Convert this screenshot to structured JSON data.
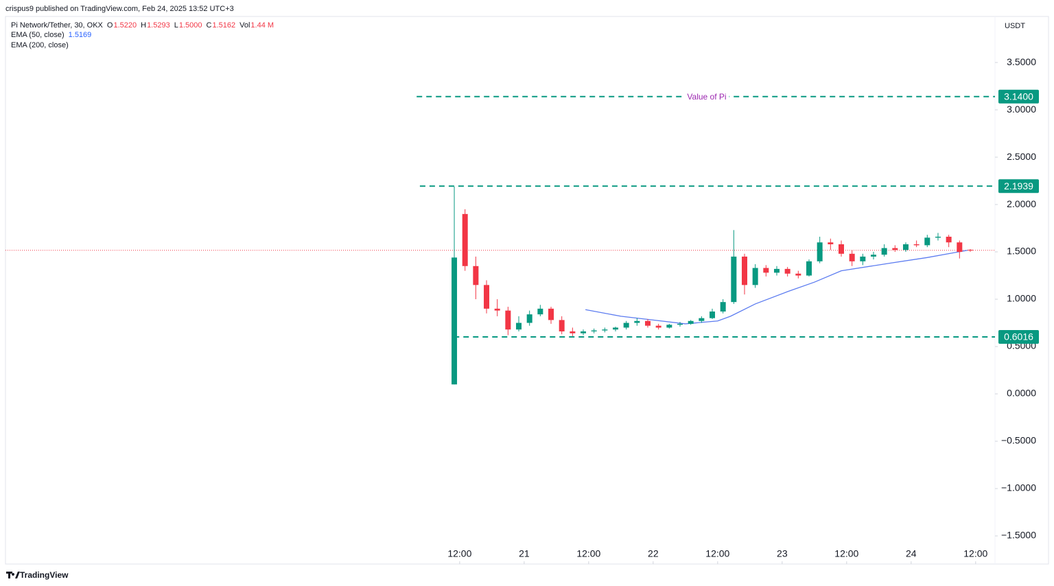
{
  "chart_data": {
    "type": "candlestick",
    "publisher": "crispus9 published on TradingView.com, Feb 24, 2025 13:52 UTC+3",
    "title": "Pi Network/Tether, 30, OKX",
    "legend": [
      {
        "key": "O",
        "value": "1.5220"
      },
      {
        "key": "H",
        "value": "1.5293"
      },
      {
        "key": "L",
        "value": "1.5000"
      },
      {
        "key": "C",
        "value": "1.5162"
      },
      {
        "key": "Vol",
        "value": "1.44 M"
      }
    ],
    "currency": "USDT",
    "watermark": "TradingView",
    "up_color": "#089981",
    "down_color": "#f23645",
    "x": [
      -1,
      1,
      3,
      5,
      7,
      9,
      11,
      13,
      15,
      17,
      19,
      21,
      23,
      25,
      27,
      29,
      31,
      33,
      35,
      37,
      39,
      41,
      43,
      45,
      47,
      49,
      51,
      53,
      55,
      57,
      59,
      61,
      63,
      65,
      67,
      69,
      71,
      73,
      75,
      77,
      79,
      81,
      83,
      85,
      87,
      89,
      91,
      93,
      95
    ],
    "open": [
      0.1,
      1.9,
      1.35,
      1.15,
      0.9,
      0.88,
      0.68,
      0.75,
      0.84,
      0.9,
      0.78,
      0.66,
      0.64,
      0.66,
      0.67,
      0.68,
      0.7,
      0.75,
      0.77,
      0.72,
      0.7,
      0.73,
      0.74,
      0.77,
      0.8,
      0.87,
      0.97,
      1.45,
      1.15,
      1.33,
      1.28,
      1.32,
      1.27,
      1.25,
      1.4,
      1.6,
      1.58,
      1.48,
      1.4,
      1.45,
      1.47,
      1.54,
      1.52,
      1.58,
      1.57,
      1.65,
      1.66,
      1.6,
      1.522
    ],
    "high": [
      2.19,
      1.95,
      1.45,
      1.2,
      1.0,
      0.92,
      0.82,
      0.88,
      0.94,
      0.92,
      0.82,
      0.7,
      0.68,
      0.69,
      0.7,
      0.71,
      0.77,
      0.8,
      0.79,
      0.74,
      0.74,
      0.76,
      0.78,
      0.82,
      0.9,
      1.0,
      1.73,
      1.48,
      1.37,
      1.36,
      1.35,
      1.34,
      1.3,
      1.42,
      1.66,
      1.64,
      1.62,
      1.52,
      1.48,
      1.5,
      1.58,
      1.57,
      1.6,
      1.62,
      1.68,
      1.7,
      1.68,
      1.62,
      1.5293
    ],
    "low": [
      0.1,
      1.3,
      1.0,
      0.85,
      0.82,
      0.62,
      0.66,
      0.72,
      0.82,
      0.74,
      0.63,
      0.61,
      0.62,
      0.64,
      0.65,
      0.66,
      0.68,
      0.72,
      0.7,
      0.68,
      0.69,
      0.71,
      0.73,
      0.75,
      0.79,
      0.85,
      0.95,
      1.05,
      1.12,
      1.24,
      1.25,
      1.24,
      1.22,
      1.24,
      1.38,
      1.52,
      1.45,
      1.35,
      1.36,
      1.42,
      1.45,
      1.5,
      1.5,
      1.55,
      1.55,
      1.62,
      1.55,
      1.43,
      1.5
    ],
    "close": [
      1.44,
      1.35,
      1.15,
      0.9,
      0.88,
      0.68,
      0.75,
      0.84,
      0.9,
      0.78,
      0.66,
      0.64,
      0.66,
      0.67,
      0.68,
      0.7,
      0.75,
      0.77,
      0.72,
      0.7,
      0.73,
      0.74,
      0.77,
      0.8,
      0.87,
      0.97,
      1.45,
      1.15,
      1.33,
      1.28,
      1.32,
      1.27,
      1.25,
      1.4,
      1.6,
      1.58,
      1.48,
      1.4,
      1.45,
      1.47,
      1.54,
      1.52,
      1.58,
      1.57,
      1.65,
      1.66,
      1.6,
      1.5,
      1.5162
    ],
    "ema": {
      "name": "EMA (50, close)",
      "value_label": "1.5169",
      "color": "#5b7bf0",
      "x": [
        23.4,
        30,
        36,
        42,
        48,
        50.4,
        55,
        61,
        66,
        71,
        80,
        87,
        94.5
      ],
      "values": [
        0.89,
        0.82,
        0.78,
        0.74,
        0.77,
        0.82,
        0.95,
        1.08,
        1.18,
        1.3,
        1.38,
        1.44,
        1.5169
      ]
    },
    "ema200": {
      "name": "EMA (200, close)"
    },
    "levels": [
      {
        "value": 3.14,
        "label": "3.1400",
        "start": -8,
        "text": "Value of Pi"
      },
      {
        "value": 2.1939,
        "label": "2.1939",
        "start": -7.4
      },
      {
        "value": 0.6016,
        "label": "0.6016",
        "start": -1.1
      }
    ],
    "level_color": "#089981",
    "xlim": [
      -84.5,
      99.6
    ],
    "xticks": [
      {
        "value": 0,
        "label": "12:00"
      },
      {
        "value": 12,
        "label": "21"
      },
      {
        "value": 24,
        "label": "12:00"
      },
      {
        "value": 36,
        "label": "22"
      },
      {
        "value": 48,
        "label": "12:00"
      },
      {
        "value": 60,
        "label": "23"
      },
      {
        "value": 72,
        "label": "12:00"
      },
      {
        "value": 84,
        "label": "24"
      },
      {
        "value": 96,
        "label": "12:00"
      }
    ],
    "ylim": [
      -1.797,
      3.986
    ],
    "yticks": [
      {
        "value": -1.5,
        "label": "−1.5000"
      },
      {
        "value": -1,
        "label": "−1.0000"
      },
      {
        "value": -0.5,
        "label": "−0.5000"
      },
      {
        "value": 0,
        "label": "0.0000"
      },
      {
        "value": 0.5,
        "label": "0.5000"
      },
      {
        "value": 1,
        "label": "1.0000"
      },
      {
        "value": 1.5,
        "label": "1.5000"
      },
      {
        "value": 2,
        "label": "2.0000"
      },
      {
        "value": 2.5,
        "label": "2.5000"
      },
      {
        "value": 3,
        "label": "3.0000"
      },
      {
        "value": 3.5,
        "label": "3.5000"
      }
    ]
  }
}
